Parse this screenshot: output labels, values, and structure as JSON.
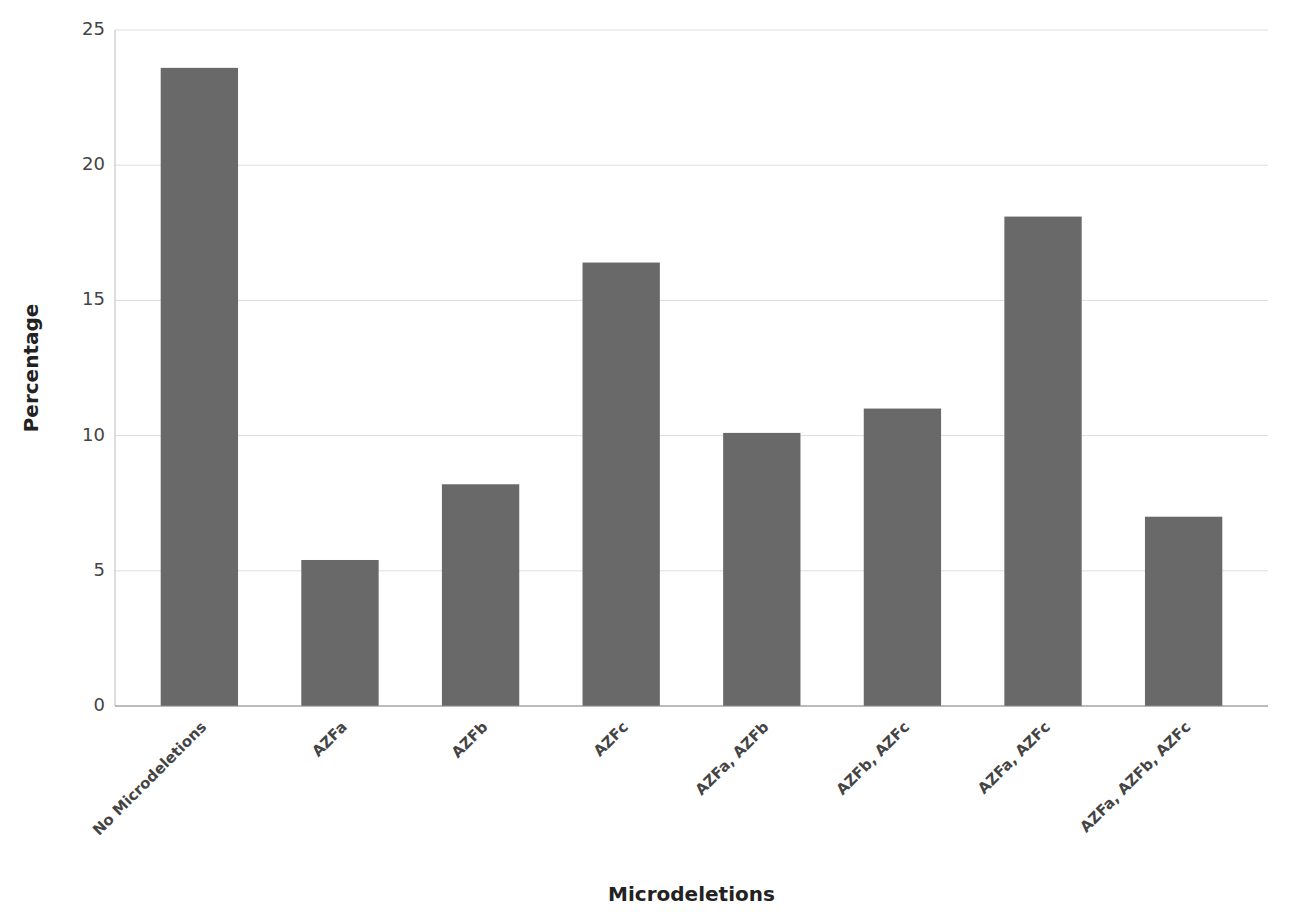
{
  "chart_data": {
    "type": "bar",
    "categories": [
      "No Microdeletions",
      "AZFa",
      "AZFb",
      "AZFc",
      "AZFa, AZFb",
      "AZFb, AZFc",
      "AZFa, AZFc",
      "AZFa, AZFb, AZFc"
    ],
    "values": [
      23.6,
      5.4,
      8.2,
      16.4,
      10.1,
      11.0,
      18.1,
      7.0
    ],
    "color": "#696969",
    "xlabel": "Microdeletions",
    "ylabel": "Percentage",
    "ylim": [
      0,
      25
    ],
    "yticks": [
      0,
      5,
      10,
      15,
      20,
      25
    ],
    "grid": true
  }
}
